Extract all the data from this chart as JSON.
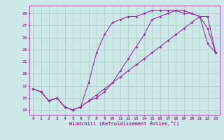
{
  "xlabel": "Windchill (Refroidissement éolien,°C)",
  "bg_color": "#cce8e8",
  "grid_color": "#aacccc",
  "line_color": "#993399",
  "yticks": [
    13,
    15,
    17,
    19,
    21,
    23,
    25,
    27,
    29
  ],
  "xticks": [
    0,
    1,
    2,
    3,
    4,
    5,
    6,
    7,
    8,
    9,
    10,
    11,
    12,
    13,
    14,
    15,
    16,
    17,
    18,
    19,
    20,
    21,
    22,
    23
  ],
  "xlim_min": -0.5,
  "xlim_max": 23.5,
  "ylim_min": 12.2,
  "ylim_max": 30.3,
  "curve1_x": [
    0,
    1,
    2,
    3,
    4,
    5,
    6,
    7,
    8,
    9,
    10,
    11,
    12,
    13,
    14,
    15,
    16,
    17,
    18,
    19,
    20,
    21,
    22,
    23
  ],
  "curve1_y": [
    16.5,
    16.0,
    14.5,
    15.0,
    13.5,
    13.0,
    13.5,
    14.5,
    15.0,
    16.0,
    17.5,
    19.5,
    21.5,
    23.5,
    25.5,
    28.0,
    28.5,
    29.0,
    29.5,
    29.5,
    29.0,
    28.5,
    24.0,
    22.5
  ],
  "curve2_x": [
    0,
    1,
    2,
    3,
    4,
    5,
    6,
    7,
    8,
    9,
    10,
    11,
    12,
    13,
    14,
    15,
    16,
    17,
    18,
    19,
    20,
    21,
    22,
    23
  ],
  "curve2_y": [
    16.5,
    16.0,
    14.5,
    15.0,
    13.5,
    13.0,
    13.5,
    17.5,
    22.5,
    25.5,
    27.5,
    28.0,
    28.5,
    28.5,
    29.0,
    29.5,
    29.5,
    29.5,
    29.5,
    29.0,
    29.0,
    28.5,
    28.5,
    22.5
  ],
  "curve3_x": [
    0,
    1,
    2,
    3,
    4,
    5,
    6,
    7,
    8,
    9,
    10,
    11,
    12,
    13,
    14,
    15,
    16,
    17,
    18,
    19,
    20,
    21,
    22,
    23
  ],
  "curve3_y": [
    16.5,
    16.0,
    14.5,
    15.0,
    13.5,
    13.0,
    13.5,
    14.5,
    15.5,
    16.5,
    17.5,
    18.5,
    19.5,
    20.5,
    21.5,
    22.5,
    23.5,
    24.5,
    25.5,
    26.5,
    27.5,
    28.5,
    26.5,
    22.5
  ]
}
